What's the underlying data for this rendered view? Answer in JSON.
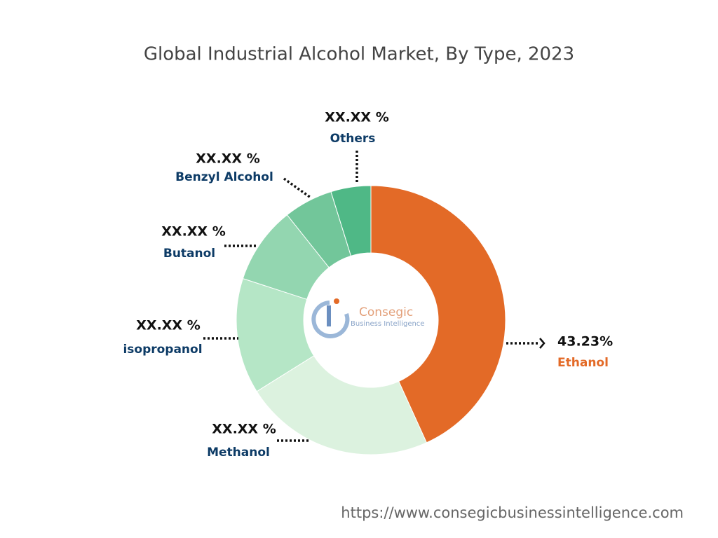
{
  "chart_data": {
    "type": "donut",
    "title": "Global Industrial Alcohol Market, By Type, 2023",
    "categories": [
      "Ethanol",
      "Methanol",
      "isopropanol",
      "Butanol",
      "Benzyl Alcohol",
      "Others"
    ],
    "values": [
      43.23,
      22.9,
      13.9,
      9.3,
      5.9,
      4.8
    ],
    "value_labels": [
      "43.23%",
      "XX.XX %",
      "XX.XX %",
      "XX.XX %",
      "XX.XX %",
      "XX.XX %"
    ],
    "colors": [
      "#e36a27",
      "#dcf2df",
      "#b5e6c6",
      "#93d6b0",
      "#72c69a",
      "#4fb886"
    ],
    "logo": {
      "name": "Consegic",
      "tagline": "Business Intelligence"
    },
    "source": "https://www.consegicbusinessintelligence.com"
  }
}
